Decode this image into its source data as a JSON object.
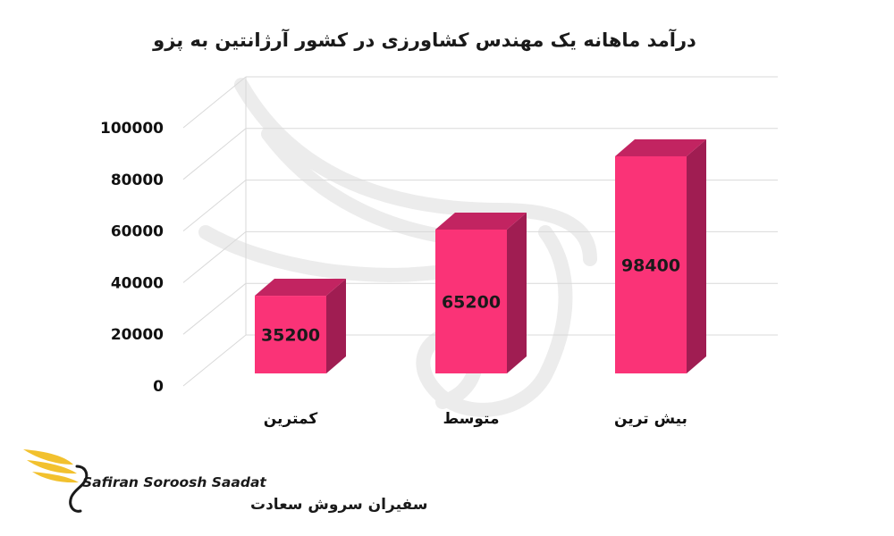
{
  "chart_data": {
    "type": "bar",
    "title": "درآمد ماهانه یک مهندس کشاورزی در کشور آرژانتین به پزو",
    "categories": [
      "کمترین",
      "متوسط",
      "بیش ترین"
    ],
    "values": [
      35200,
      65200,
      98400
    ],
    "data_labels": [
      "35200",
      "65200",
      "98400"
    ],
    "ylim": [
      0,
      100000
    ],
    "yticks": [
      0,
      20000,
      40000,
      60000,
      80000,
      100000
    ],
    "ytick_labels": [
      "0",
      "20000",
      "40000",
      "60000",
      "80000",
      "100000"
    ],
    "xlabel": "",
    "ylabel": "",
    "grid": true,
    "style": "3d-columns",
    "colors": {
      "bar_front": "#fa3377",
      "bar_side": "#a01d52",
      "bar_top": "#c22461",
      "grid": "#d9d9d9"
    }
  },
  "watermark": {
    "description": "faint gray phoenix logo"
  },
  "brand": {
    "name_en": "Safiran Soroosh Saadat",
    "name_fa": "سفیران سروش سعادت",
    "logo_icon": "phoenix-logo-icon",
    "colors": {
      "wing": "#f2c12e",
      "text": "#1a1a1a"
    }
  }
}
